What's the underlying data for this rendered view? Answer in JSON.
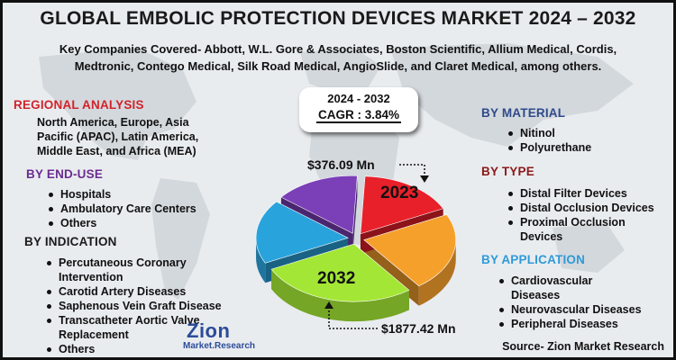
{
  "title": "GLOBAL EMBOLIC PROTECTION DEVICES MARKET 2024 – 2032",
  "subtitle_line1": "Key Companies Covered- Abbott, W.L. Gore & Associates, Boston Scientific, Allium Medical, Cordis,",
  "subtitle_line2": "Medtronic, Contego Medical, Silk Road Medical, AngioSlide, and Claret Medical, among others.",
  "regional": {
    "heading": "REGIONAL ANALYSIS",
    "lines": [
      "North America, Europe, Asia",
      "Pacific (APAC), Latin America,",
      "Middle East, and Africa (MEA)"
    ]
  },
  "end_use": {
    "heading": "BY END-USE",
    "items": [
      "Hospitals",
      "Ambulatory Care Centers",
      "Others"
    ]
  },
  "indication": {
    "heading": "BY INDICATION",
    "items": [
      [
        "Percutaneous Coronary",
        "Intervention"
      ],
      [
        "Carotid Artery Diseases"
      ],
      [
        "Saphenous Vein Graft Disease"
      ],
      [
        "Transcatheter Aortic Valve",
        "Replacement"
      ],
      [
        "Others"
      ]
    ]
  },
  "material": {
    "heading": "BY MATERIAL",
    "items": [
      "Nitinol",
      "Polyurethane"
    ]
  },
  "type": {
    "heading": "BY TYPE",
    "items": [
      [
        "Distal Filter Devices"
      ],
      [
        "Distal Occlusion Devices"
      ],
      [
        "Proximal Occlusion",
        "Devices"
      ]
    ]
  },
  "application": {
    "heading": "BY APPLICATION",
    "items": [
      [
        "Cardiovascular",
        "Diseases"
      ],
      [
        "Neurovascular Diseases"
      ],
      [
        "Peripheral Diseases"
      ]
    ]
  },
  "cagr": {
    "period": "2024 - 2032",
    "value": "CAGR : 3.84%"
  },
  "logo": {
    "name": "Zion",
    "sub": "Market.Research"
  },
  "source": "Source- Zion Market Research",
  "chart_data": {
    "type": "pie",
    "title": "",
    "slices": [
      {
        "label": "2023",
        "value": 17,
        "color": "#e8202a"
      },
      {
        "label": "",
        "value": 22,
        "color": "#f6a02c"
      },
      {
        "label": "2032",
        "value": 28,
        "color": "#a3e635"
      },
      {
        "label": "",
        "value": 18,
        "color": "#29a3dc"
      },
      {
        "label": "",
        "value": 15,
        "color": "#7b3fb8"
      }
    ],
    "annotations": [
      {
        "label": "$376.09 Mn",
        "year": "2023"
      },
      {
        "label": "$1877.42 Mn",
        "year": "2032"
      }
    ]
  }
}
